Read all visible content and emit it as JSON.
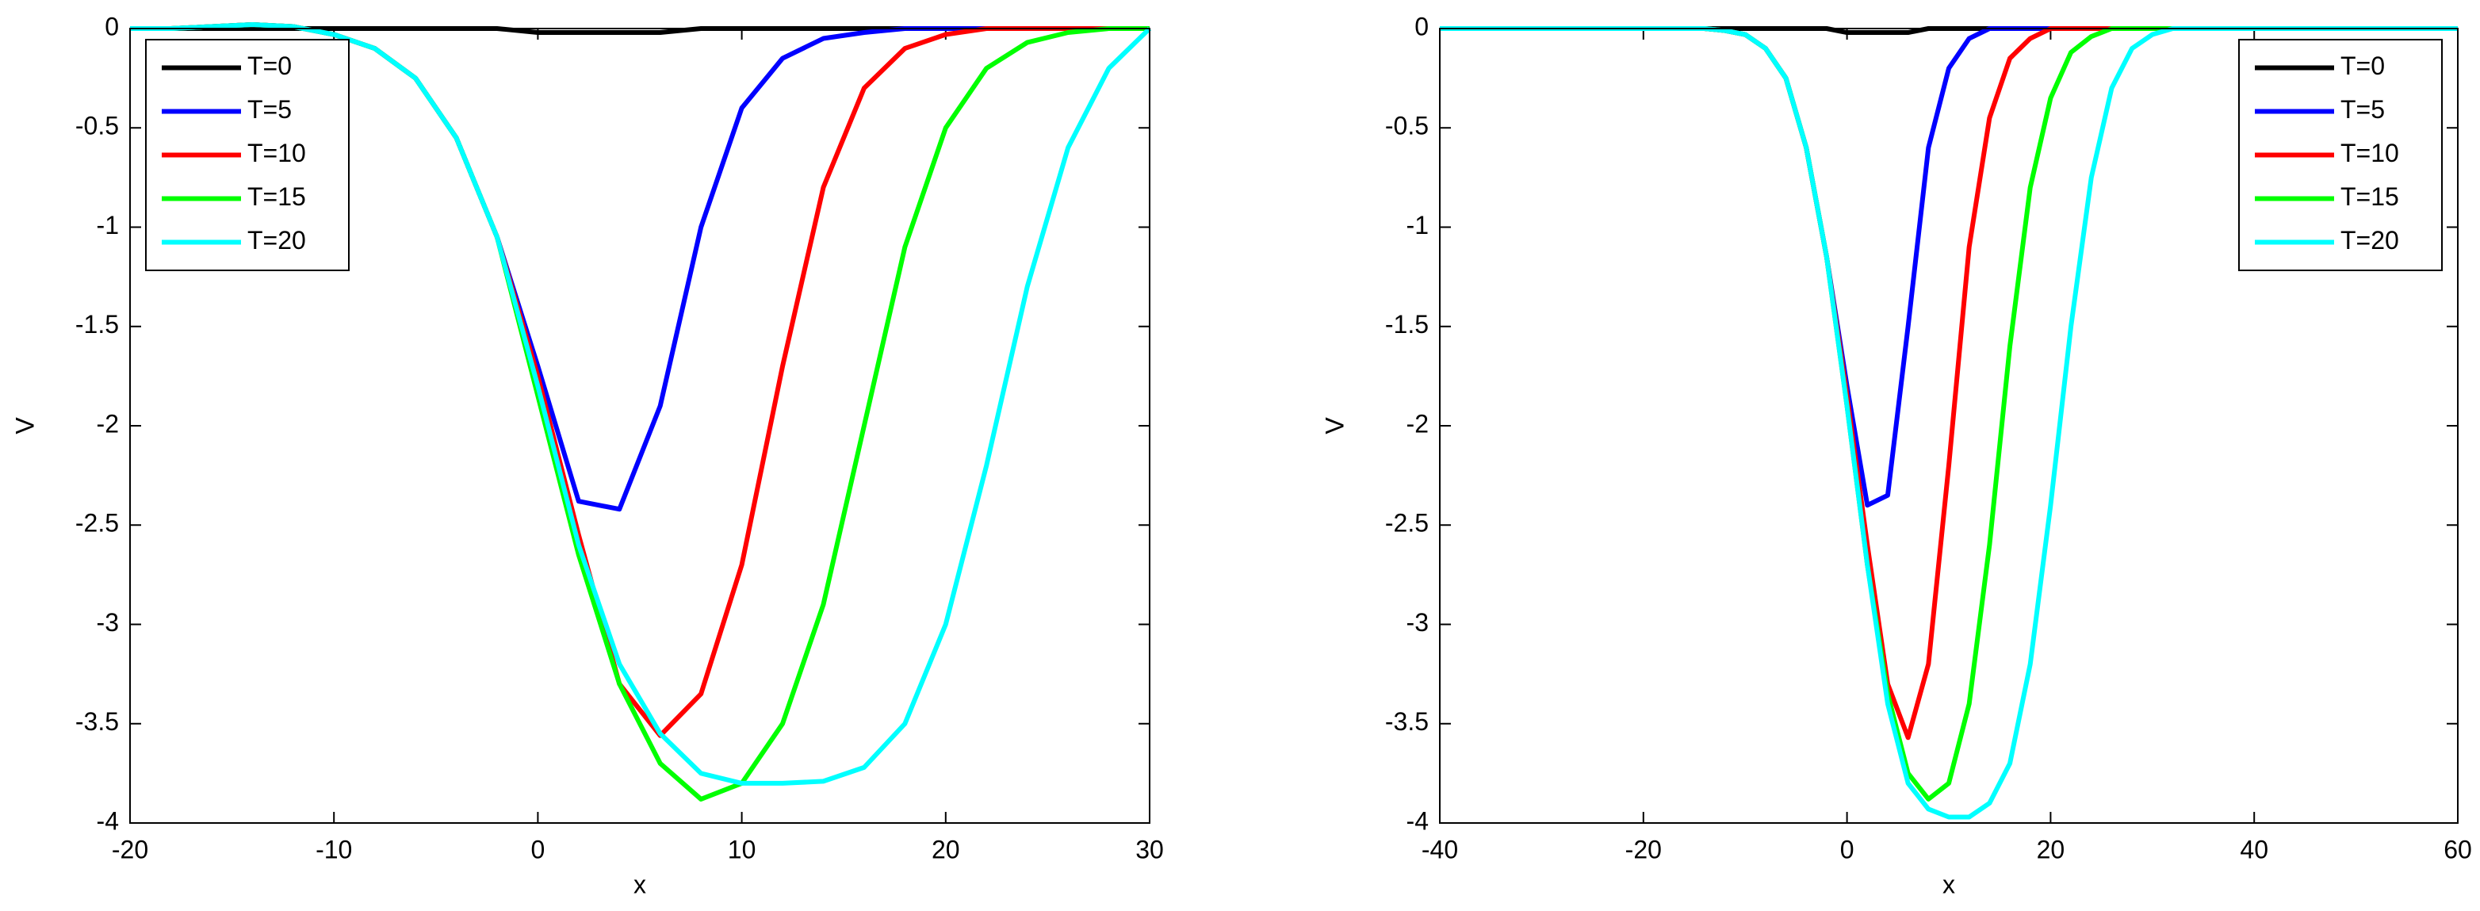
{
  "chart_data": [
    {
      "type": "line",
      "x_label": "x",
      "y_label": "V",
      "legend": "upper left",
      "xlim": [
        -20,
        30
      ],
      "ylim": [
        -4,
        0
      ],
      "xticks": [
        -20,
        -10,
        0,
        10,
        20,
        30
      ],
      "yticks": [
        -4,
        -3.5,
        -3,
        -2.5,
        -2,
        -1.5,
        -1,
        -0.5,
        0
      ],
      "x": [
        -20,
        -18,
        -16,
        -14,
        -12,
        -10,
        -8,
        -6,
        -4,
        -2,
        0,
        2,
        4,
        6,
        8,
        10,
        12,
        14,
        16,
        18,
        20,
        22,
        24,
        26,
        28,
        30
      ],
      "series": [
        {
          "name": "T=0",
          "color": "#000000",
          "values": [
            0,
            0,
            0,
            0,
            0,
            0,
            0,
            0,
            0,
            0,
            -0.02,
            -0.02,
            -0.02,
            -0.02,
            0,
            0,
            0,
            0,
            0,
            0,
            0,
            0,
            0,
            0,
            0,
            0
          ]
        },
        {
          "name": "T=5",
          "color": "#0000ff",
          "values": [
            0,
            0,
            0.01,
            0.02,
            0.01,
            -0.03,
            -0.1,
            -0.25,
            -0.55,
            -1.05,
            -1.7,
            -2.38,
            -2.42,
            -1.9,
            -1.0,
            -0.4,
            -0.15,
            -0.05,
            -0.02,
            0,
            0,
            0,
            0,
            0,
            0,
            0
          ]
        },
        {
          "name": "T=10",
          "color": "#ff0000",
          "values": [
            0,
            0,
            0.01,
            0.02,
            0.01,
            -0.03,
            -0.1,
            -0.25,
            -0.55,
            -1.05,
            -1.75,
            -2.55,
            -3.3,
            -3.56,
            -3.35,
            -2.7,
            -1.7,
            -0.8,
            -0.3,
            -0.1,
            -0.03,
            0,
            0,
            0,
            0,
            0
          ]
        },
        {
          "name": "T=15",
          "color": "#00ff00",
          "values": [
            0,
            0,
            0.01,
            0.02,
            0.01,
            -0.03,
            -0.1,
            -0.25,
            -0.55,
            -1.05,
            -1.85,
            -2.65,
            -3.3,
            -3.7,
            -3.88,
            -3.8,
            -3.5,
            -2.9,
            -2.0,
            -1.1,
            -0.5,
            -0.2,
            -0.07,
            -0.02,
            0,
            0
          ]
        },
        {
          "name": "T=20",
          "color": "#00ffff",
          "values": [
            0,
            0,
            0.01,
            0.02,
            0.01,
            -0.03,
            -0.1,
            -0.25,
            -0.55,
            -1.05,
            -1.8,
            -2.6,
            -3.2,
            -3.55,
            -3.75,
            -3.8,
            -3.8,
            -3.79,
            -3.72,
            -3.5,
            -3.0,
            -2.2,
            -1.3,
            -0.6,
            -0.2,
            0
          ]
        }
      ]
    },
    {
      "type": "line",
      "x_label": "x",
      "y_label": "V",
      "legend": "upper right",
      "xlim": [
        -40,
        60
      ],
      "ylim": [
        -4,
        0
      ],
      "xticks": [
        -40,
        -20,
        0,
        20,
        40,
        60
      ],
      "yticks": [
        -4,
        -3.5,
        -3,
        -2.5,
        -2,
        -1.5,
        -1,
        -0.5,
        0
      ],
      "x": [
        -40,
        -38,
        -36,
        -34,
        -32,
        -30,
        -28,
        -26,
        -24,
        -22,
        -20,
        -18,
        -16,
        -14,
        -12,
        -10,
        -8,
        -6,
        -4,
        -2,
        0,
        2,
        4,
        6,
        8,
        10,
        12,
        14,
        16,
        18,
        20,
        22,
        24,
        26,
        28,
        30,
        32,
        34,
        36,
        38,
        40,
        42,
        44,
        46,
        48,
        50,
        52,
        54,
        56,
        58,
        60
      ],
      "series": [
        {
          "name": "T=0",
          "color": "#000000",
          "values": [
            0,
            0,
            0,
            0,
            0,
            0,
            0,
            0,
            0,
            0,
            0,
            0,
            0,
            0,
            0,
            0,
            0,
            0,
            0,
            0,
            -0.02,
            -0.02,
            -0.02,
            -0.02,
            0,
            0,
            0,
            0,
            0,
            0,
            0,
            0,
            0,
            0,
            0,
            0,
            0,
            0,
            0,
            0,
            0,
            0,
            0,
            0,
            0,
            0,
            0,
            0,
            0,
            0,
            0
          ]
        },
        {
          "name": "T=5",
          "color": "#0000ff",
          "values": [
            0,
            0,
            0,
            0,
            0,
            0,
            0,
            0,
            0,
            0,
            0,
            0,
            0,
            0,
            -0.01,
            -0.03,
            -0.1,
            -0.25,
            -0.6,
            -1.15,
            -1.8,
            -2.4,
            -2.35,
            -1.5,
            -0.6,
            -0.2,
            -0.05,
            0,
            0,
            0,
            0,
            0,
            0,
            0,
            0,
            0,
            0,
            0,
            0,
            0,
            0,
            0,
            0,
            0,
            0,
            0,
            0,
            0,
            0,
            0,
            0
          ]
        },
        {
          "name": "T=10",
          "color": "#ff0000",
          "values": [
            0,
            0,
            0,
            0,
            0,
            0,
            0,
            0,
            0,
            0,
            0,
            0,
            0,
            0,
            -0.01,
            -0.03,
            -0.1,
            -0.25,
            -0.6,
            -1.15,
            -1.85,
            -2.6,
            -3.3,
            -3.57,
            -3.2,
            -2.2,
            -1.1,
            -0.45,
            -0.15,
            -0.05,
            0,
            0,
            0,
            0,
            0,
            0,
            0,
            0,
            0,
            0,
            0,
            0,
            0,
            0,
            0,
            0,
            0,
            0,
            0,
            0,
            0
          ]
        },
        {
          "name": "T=15",
          "color": "#00ff00",
          "values": [
            0,
            0,
            0,
            0,
            0,
            0,
            0,
            0,
            0,
            0,
            0,
            0,
            0,
            0,
            -0.01,
            -0.03,
            -0.1,
            -0.25,
            -0.6,
            -1.15,
            -1.9,
            -2.7,
            -3.35,
            -3.75,
            -3.88,
            -3.8,
            -3.4,
            -2.6,
            -1.6,
            -0.8,
            -0.35,
            -0.12,
            -0.04,
            0,
            0,
            0,
            0,
            0,
            0,
            0,
            0,
            0,
            0,
            0,
            0,
            0,
            0,
            0,
            0,
            0,
            0
          ]
        },
        {
          "name": "T=20",
          "color": "#00ffff",
          "values": [
            0,
            0,
            0,
            0,
            0,
            0,
            0,
            0,
            0,
            0,
            0,
            0,
            0,
            0,
            -0.01,
            -0.03,
            -0.1,
            -0.25,
            -0.6,
            -1.15,
            -1.9,
            -2.7,
            -3.4,
            -3.8,
            -3.93,
            -3.97,
            -3.97,
            -3.9,
            -3.7,
            -3.2,
            -2.4,
            -1.5,
            -0.75,
            -0.3,
            -0.1,
            -0.03,
            0,
            0,
            0,
            0,
            0,
            0,
            0,
            0,
            0,
            0,
            0,
            0,
            0,
            0,
            0
          ]
        }
      ]
    }
  ]
}
